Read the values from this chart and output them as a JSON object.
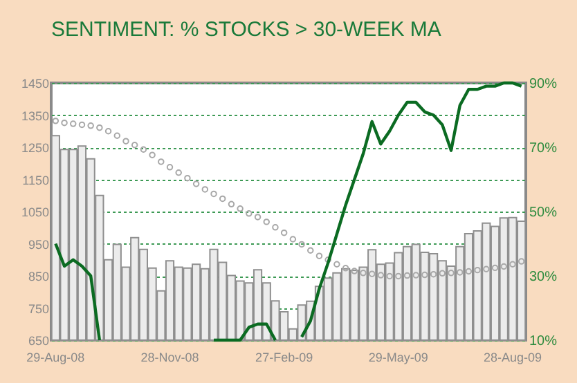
{
  "chart_data": {
    "type": "bar",
    "title": "SENTIMENT: % STOCKS > 30-WEEK MA",
    "categories": [
      "29-Aug-08",
      null,
      null,
      null,
      null,
      null,
      null,
      null,
      null,
      null,
      null,
      null,
      null,
      "28-Nov-08",
      null,
      null,
      null,
      null,
      null,
      null,
      null,
      null,
      null,
      null,
      null,
      null,
      "27-Feb-09",
      null,
      null,
      null,
      null,
      null,
      null,
      null,
      null,
      null,
      null,
      null,
      null,
      "29-May-09",
      null,
      null,
      null,
      null,
      null,
      null,
      null,
      null,
      null,
      null,
      null,
      null,
      "28-Aug-09",
      null
    ],
    "series": [
      {
        "color": "#ececec",
        "values": [
          1286,
          1243,
          1243,
          1254,
          1214,
          1100,
          900,
          948,
          877,
          969,
          932,
          874,
          803,
          897,
          877,
          874,
          886,
          872,
          932,
          892,
          851,
          834,
          828,
          869,
          828,
          772,
          738,
          685,
          759,
          771,
          817,
          843,
          859,
          872,
          867,
          877,
          931,
          886,
          890,
          922,
          941,
          948,
          923,
          919,
          897,
          880,
          941,
          981,
          990,
          1014,
          1004,
          1030,
          1031,
          1020
        ]
      },
      {
        "type": "scatter",
        "marker": "circle",
        "color": "#a8a8a8",
        "values": [
          1332,
          1326,
          1323,
          1320,
          1317,
          1311,
          1300,
          1286,
          1269,
          1257,
          1243,
          1226,
          1205,
          1188,
          1171,
          1154,
          1136,
          1119,
          1105,
          1090,
          1073,
          1059,
          1044,
          1033,
          1018,
          1001,
          984,
          964,
          948,
          929,
          912,
          900,
          886,
          874,
          865,
          859,
          856,
          852,
          849,
          849,
          851,
          852,
          853,
          855,
          858,
          859,
          861,
          864,
          868,
          871,
          875,
          879,
          886,
          895
        ]
      },
      {
        "type": "line",
        "axis": "y2",
        "color": "#0b6b22",
        "values": [
          40,
          33,
          35,
          33,
          30,
          10,
          null,
          null,
          null,
          null,
          null,
          null,
          null,
          null,
          null,
          null,
          null,
          null,
          10,
          10,
          10,
          10,
          14,
          15,
          15,
          10,
          null,
          null,
          11,
          16,
          26,
          34,
          43,
          52,
          60,
          68,
          78,
          71,
          75,
          80,
          84,
          84,
          81,
          80,
          77,
          69,
          83,
          88,
          88,
          89,
          89,
          90,
          90,
          89
        ]
      }
    ],
    "ylim": [
      650,
      1450
    ],
    "yticks": [
      650,
      750,
      850,
      950,
      1050,
      1150,
      1250,
      1350,
      1450
    ],
    "y2lim": [
      10,
      90
    ],
    "y2ticks": [
      {
        "value": 10,
        "label": "10%"
      },
      {
        "value": 30,
        "label": "30%"
      },
      {
        "value": 50,
        "label": "50%"
      },
      {
        "value": 70,
        "label": "70%"
      },
      {
        "value": 90,
        "label": "90%"
      }
    ],
    "grid": "y"
  }
}
